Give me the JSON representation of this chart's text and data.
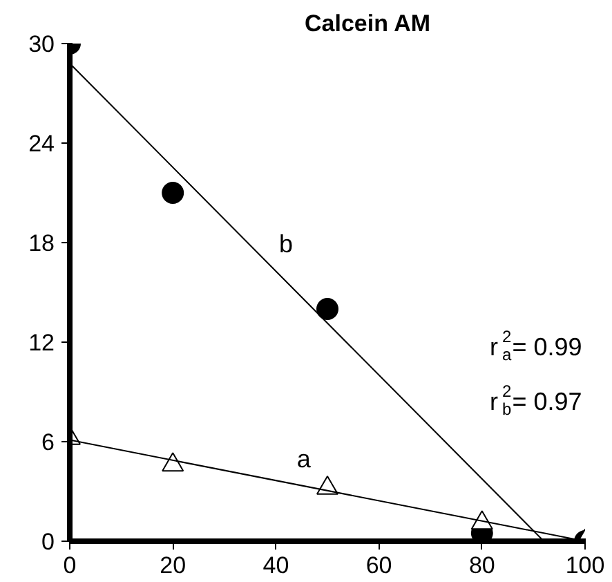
{
  "chart_data": {
    "type": "scatter",
    "title": "Calcein AM",
    "xlim": [
      0,
      100
    ],
    "ylim": [
      0,
      30
    ],
    "xticks": [
      0,
      20,
      40,
      60,
      80,
      100
    ],
    "yticks": [
      0,
      6,
      12,
      18,
      24,
      30
    ],
    "grid": false,
    "series": [
      {
        "marker": "circle",
        "color": "#000000",
        "x": [
          0,
          20,
          50,
          80,
          100
        ],
        "values": [
          30,
          21,
          14,
          0.5,
          0
        ]
      },
      {
        "marker": "triangle",
        "color": "#000000",
        "x": [
          0,
          20,
          50,
          80,
          100
        ],
        "values": [
          6.2,
          4.6,
          3.2,
          1.1,
          0
        ]
      },
      {
        "type": "line",
        "name": "b",
        "color": "#000000",
        "line_style": "solid",
        "x": [
          0,
          92
        ],
        "values": [
          28.8,
          0
        ]
      },
      {
        "type": "line",
        "name": "a",
        "color": "#000000",
        "line_style": "solid",
        "x": [
          0,
          100
        ],
        "values": [
          6.1,
          0
        ]
      }
    ],
    "annotations": [
      "r$^{2}$$_{a}$= 0.99",
      "r$^{2}$$_{b}$= 0.97"
    ]
  }
}
